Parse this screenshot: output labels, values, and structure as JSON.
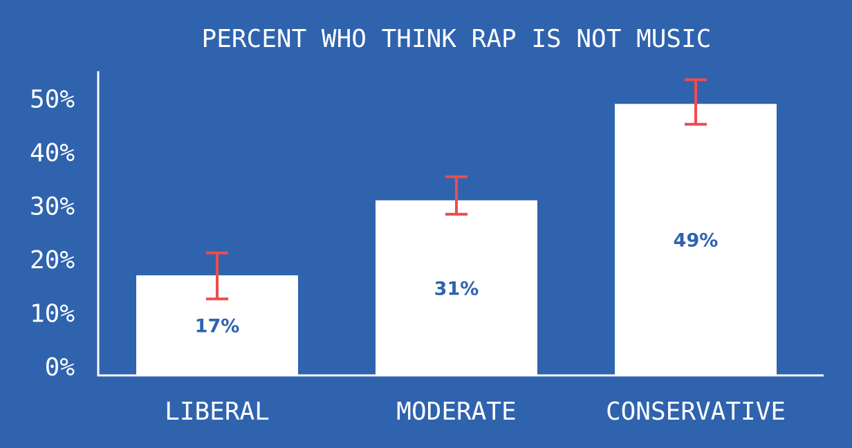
{
  "chart_data": {
    "type": "bar",
    "title": "PERCENT WHO THINK RAP IS NOT MUSIC",
    "categories": [
      "LIBERAL",
      "MODERATE",
      "CONSERVATIVE"
    ],
    "values": [
      17,
      31,
      49
    ],
    "value_labels": [
      "17%",
      "31%",
      "49%"
    ],
    "error_bars": [
      {
        "low": 12.6,
        "high": 21.2
      },
      {
        "low": 28.4,
        "high": 35.4
      },
      {
        "low": 45.2,
        "high": 53.5
      }
    ],
    "yticks": [
      0,
      10,
      20,
      30,
      40,
      50
    ],
    "ytick_labels": [
      "0%",
      "10%",
      "20%",
      "30%",
      "40%",
      "50%"
    ],
    "ylim": [
      0,
      55
    ],
    "grid": false,
    "xlabel": "",
    "ylabel": "",
    "colors": {
      "background": "#2f63ae",
      "bar": "#ffffff",
      "error_bar": "#ef4c50",
      "value_label": "#2f63ae",
      "text": "#ffffff"
    }
  }
}
